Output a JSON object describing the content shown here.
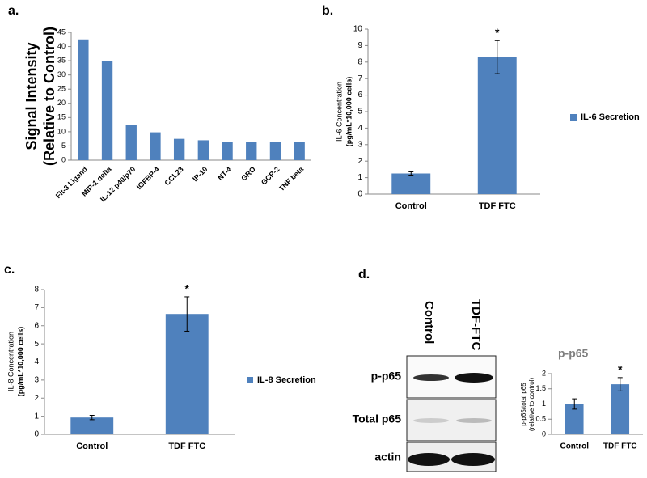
{
  "chart_data": [
    {
      "type": "bar",
      "panel_label": "a.",
      "ylabel": [
        "Signal Intensity",
        "(Relative to Control)"
      ],
      "categories": [
        "Flt-3 Ligand",
        "MIP-1 delta",
        "IL-12 p40/p70",
        "IGFBP-4",
        "CCL23",
        "IP-10",
        "NT-4",
        "GRO",
        "GCP-2",
        "TNF beta"
      ],
      "series": [
        {
          "color": "#4f81bd",
          "values": [
            42.5,
            35,
            12.5,
            9.8,
            7.5,
            7,
            6.5,
            6.5,
            6.3,
            6.3
          ]
        }
      ],
      "ylim": [
        0,
        45
      ],
      "yticks": [
        0,
        5,
        10,
        15,
        20,
        25,
        30,
        35,
        40,
        45
      ]
    },
    {
      "type": "bar",
      "panel_label": "b.",
      "ylabel": [
        "IL-6 Concentration",
        "(pg/mL*10,000 cells)"
      ],
      "categories": [
        "Control",
        "TDF FTC"
      ],
      "significance": [
        null,
        "*"
      ],
      "series": [
        {
          "name": "IL-6 Secretion",
          "color": "#4f81bd",
          "values": [
            1.25,
            8.3
          ],
          "errors": [
            0.1,
            1.0
          ]
        }
      ],
      "ylim": [
        0,
        10
      ],
      "yticks": [
        0,
        1,
        2,
        3,
        4,
        5,
        6,
        7,
        8,
        9,
        10
      ]
    },
    {
      "type": "bar",
      "panel_label": "c.",
      "ylabel": [
        "IL-8 Concentration",
        "(pg/mL*10,000 cells)"
      ],
      "categories": [
        "Control",
        "TDF FTC"
      ],
      "significance": [
        null,
        "*"
      ],
      "series": [
        {
          "name": "IL-8 Secretion",
          "color": "#4f81bd",
          "values": [
            0.93,
            6.65
          ],
          "errors": [
            0.12,
            0.95
          ]
        }
      ],
      "ylim": [
        0,
        8
      ],
      "yticks": [
        0,
        1,
        2,
        3,
        4,
        5,
        6,
        7,
        8
      ]
    },
    {
      "type": "bar",
      "title": "p-p65",
      "ylabel": [
        "p-p65/total p65",
        "(relative to control)"
      ],
      "categories": [
        "Control",
        "TDF FTC"
      ],
      "significance": [
        null,
        "*"
      ],
      "series": [
        {
          "color": "#4f81bd",
          "values": [
            1.0,
            1.65
          ],
          "errors": [
            0.17,
            0.22
          ]
        }
      ],
      "ylim": [
        0,
        2
      ],
      "yticks": [
        0,
        0.5,
        1,
        1.5,
        2
      ]
    }
  ],
  "blot": {
    "panel_label": "d.",
    "columns": [
      "Control",
      "TDF-FTC"
    ],
    "rows": [
      "p-p65",
      "Total p65",
      "actin"
    ]
  }
}
